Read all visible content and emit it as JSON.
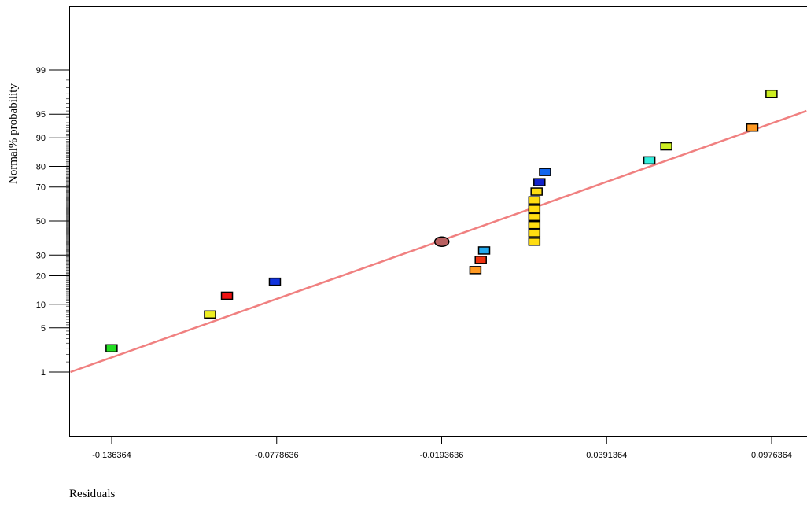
{
  "chart_data": {
    "type": "scatter",
    "title": "",
    "xlabel": "Residuals",
    "ylabel": "Normal% probability",
    "x_ticks": [
      "-0.136364",
      "-0.0778636",
      "-0.0193636",
      "0.0391364",
      "0.0976364"
    ],
    "x_tick_values": [
      -0.136364,
      -0.0778636,
      -0.0193636,
      0.0391364,
      0.0976364
    ],
    "y_ticks": [
      "1",
      "5",
      "10",
      "20",
      "30",
      "50",
      "70",
      "80",
      "90",
      "95",
      "99"
    ],
    "y_tick_values": [
      1,
      5,
      10,
      20,
      30,
      50,
      70,
      80,
      90,
      95,
      99
    ],
    "y_scale": "normal probability",
    "xlim": [
      -0.151,
      0.11
    ],
    "reference_line": {
      "color": "#f08080",
      "from": {
        "x": -0.151,
        "y": 1
      },
      "to": {
        "x": 0.11,
        "y": 95.5
      }
    },
    "series": [
      {
        "values": [
          {
            "x": -0.1364,
            "y": 2.5,
            "color": "#22dd22",
            "shape": "square"
          },
          {
            "x": -0.1015,
            "y": 7.5,
            "color": "#eeee22",
            "shape": "square"
          },
          {
            "x": -0.0955,
            "y": 12.5,
            "color": "#ee1111",
            "shape": "square"
          },
          {
            "x": -0.0785,
            "y": 17.5,
            "color": "#1133dd",
            "shape": "square"
          },
          {
            "x": -0.0193,
            "y": 37.5,
            "color": "#b86060",
            "shape": "circle"
          },
          {
            "x": -0.0074,
            "y": 22.5,
            "color": "#ff9922",
            "shape": "square"
          },
          {
            "x": -0.0055,
            "y": 27.5,
            "color": "#ee3311",
            "shape": "square"
          },
          {
            "x": -0.0043,
            "y": 32.5,
            "color": "#22aaee",
            "shape": "square"
          },
          {
            "x": 0.0135,
            "y": 37.5,
            "color": "#ffdd11",
            "shape": "square"
          },
          {
            "x": 0.0135,
            "y": 42.5,
            "color": "#ffdd11",
            "shape": "square"
          },
          {
            "x": 0.0135,
            "y": 47.5,
            "color": "#ffdd11",
            "shape": "square"
          },
          {
            "x": 0.0135,
            "y": 52.5,
            "color": "#ffdd11",
            "shape": "square"
          },
          {
            "x": 0.0135,
            "y": 57.5,
            "color": "#ffdd11",
            "shape": "square"
          },
          {
            "x": 0.0135,
            "y": 62.5,
            "color": "#ffdd11",
            "shape": "square"
          },
          {
            "x": 0.0143,
            "y": 67.5,
            "color": "#ffdd11",
            "shape": "square"
          },
          {
            "x": 0.0153,
            "y": 72.5,
            "color": "#1122cc",
            "shape": "square"
          },
          {
            "x": 0.0173,
            "y": 77.5,
            "color": "#1166ee",
            "shape": "square"
          },
          {
            "x": 0.0543,
            "y": 82.5,
            "color": "#33eedd",
            "shape": "square"
          },
          {
            "x": 0.0603,
            "y": 87.5,
            "color": "#ccee22",
            "shape": "square"
          },
          {
            "x": 0.0908,
            "y": 92.5,
            "color": "#ff9922",
            "shape": "square"
          },
          {
            "x": 0.0976,
            "y": 97.5,
            "color": "#ccee22",
            "shape": "square"
          }
        ]
      }
    ],
    "grid": false,
    "legend": "none"
  }
}
